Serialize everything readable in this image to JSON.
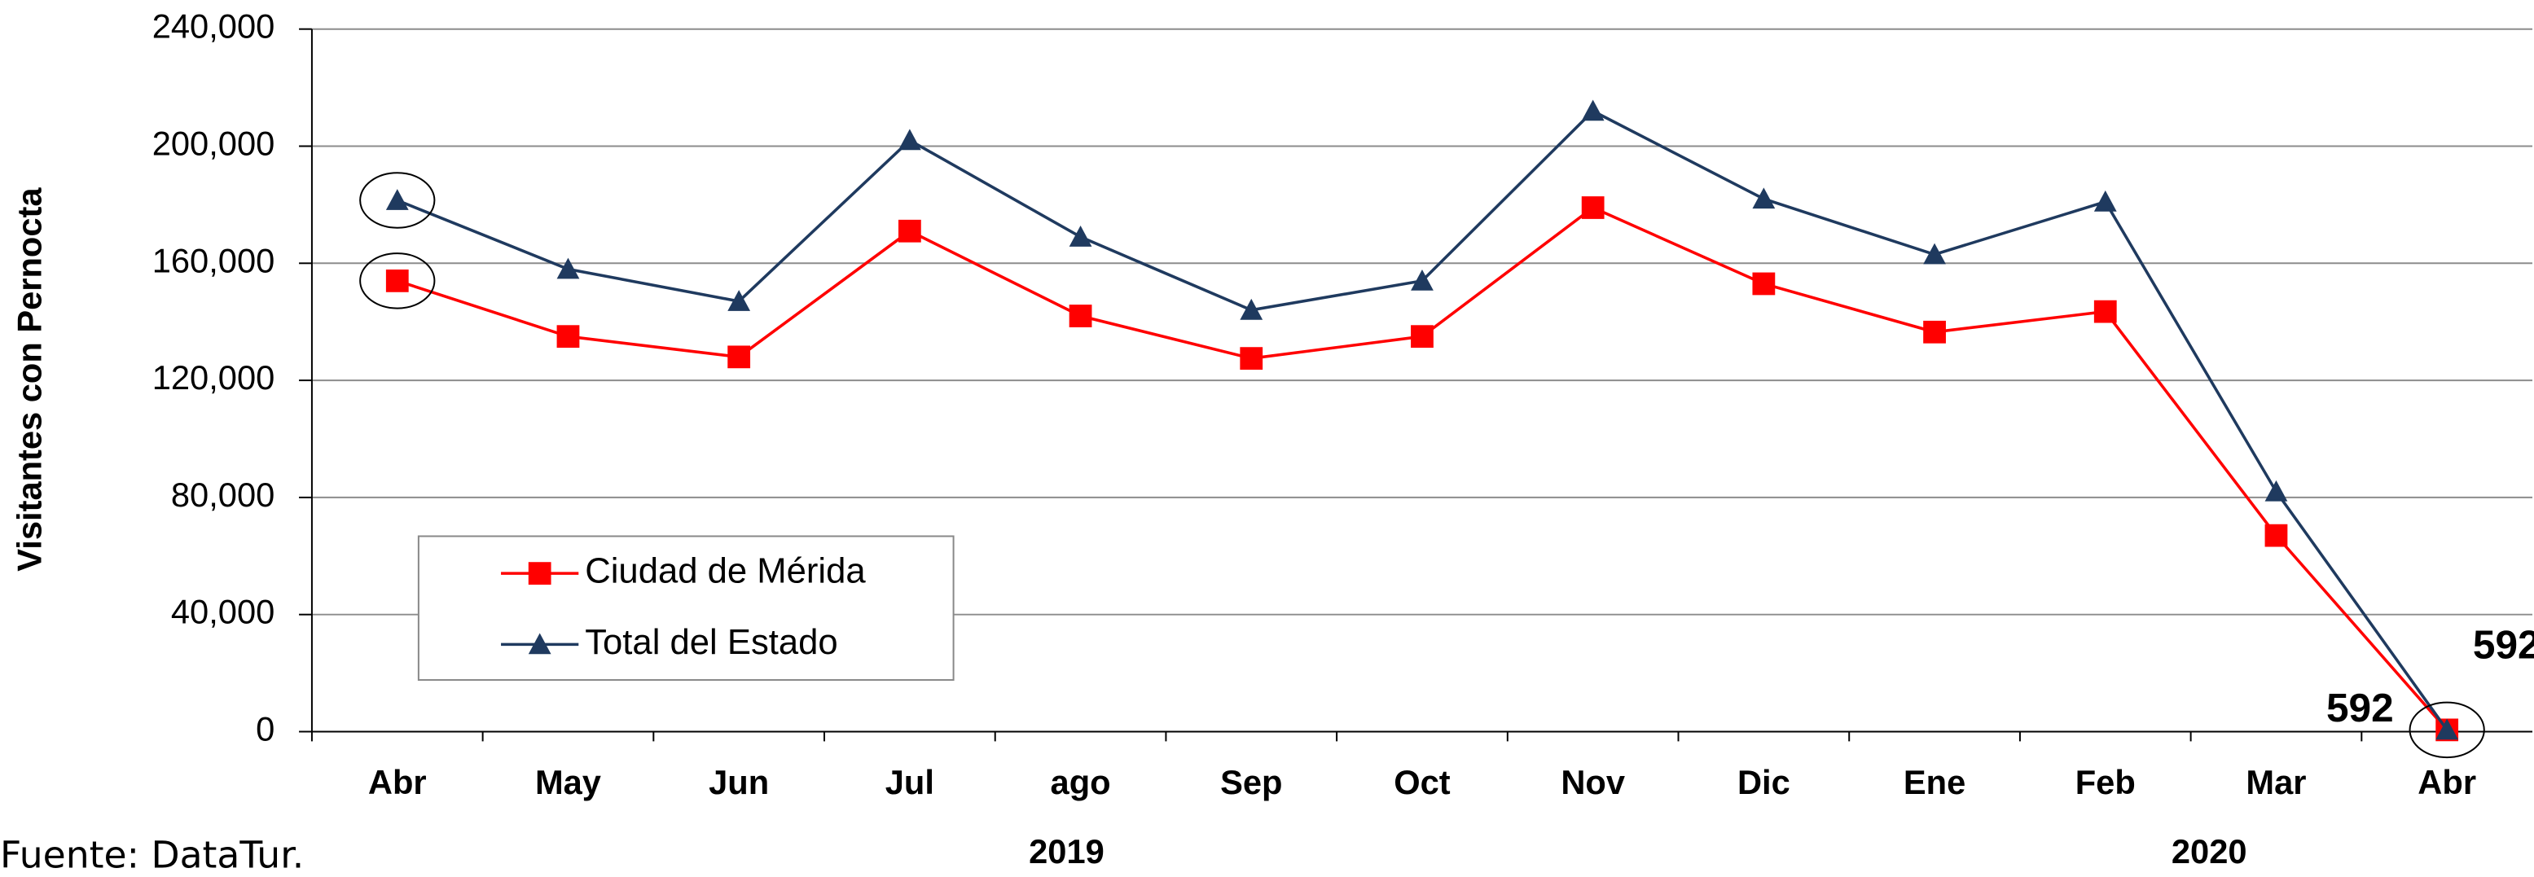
{
  "chart_data": {
    "type": "line",
    "y_label": "Visitantes con Pernocta",
    "source": "Fuente: DataTur.",
    "categories": [
      "Abr",
      "May",
      "Jun",
      "Jul",
      "ago",
      "Sep",
      "Oct",
      "Nov",
      "Dic",
      "Ene",
      "Feb",
      "Mar",
      "Abr"
    ],
    "year_labels": [
      "2019",
      "2020"
    ],
    "series": [
      {
        "name": "Ciudad de Mérida",
        "color": "#ff0000",
        "marker": "square",
        "values": [
          154000,
          135000,
          128000,
          171000,
          142000,
          127500,
          135000,
          179000,
          153000,
          136500,
          143500,
          67000,
          592
        ]
      },
      {
        "name": "Total del Estado",
        "color": "#1f3a5f",
        "marker": "triangle",
        "values": [
          181500,
          158000,
          147000,
          202000,
          169000,
          144000,
          154000,
          212000,
          182000,
          163000,
          181000,
          82000,
          592
        ]
      }
    ],
    "ylim": [
      0,
      240000
    ],
    "yticks": [
      0,
      {
        "value": 40000,
        "label": "40,000"
      },
      {
        "value": 80000,
        "label": "80,000"
      },
      {
        "value": 120000,
        "label": "120,000"
      },
      {
        "value": 160000,
        "label": "160,000"
      },
      {
        "value": 200000,
        "label": "200,000"
      },
      {
        "value": 240000,
        "label": "240,000"
      }
    ],
    "grid": true
  }
}
